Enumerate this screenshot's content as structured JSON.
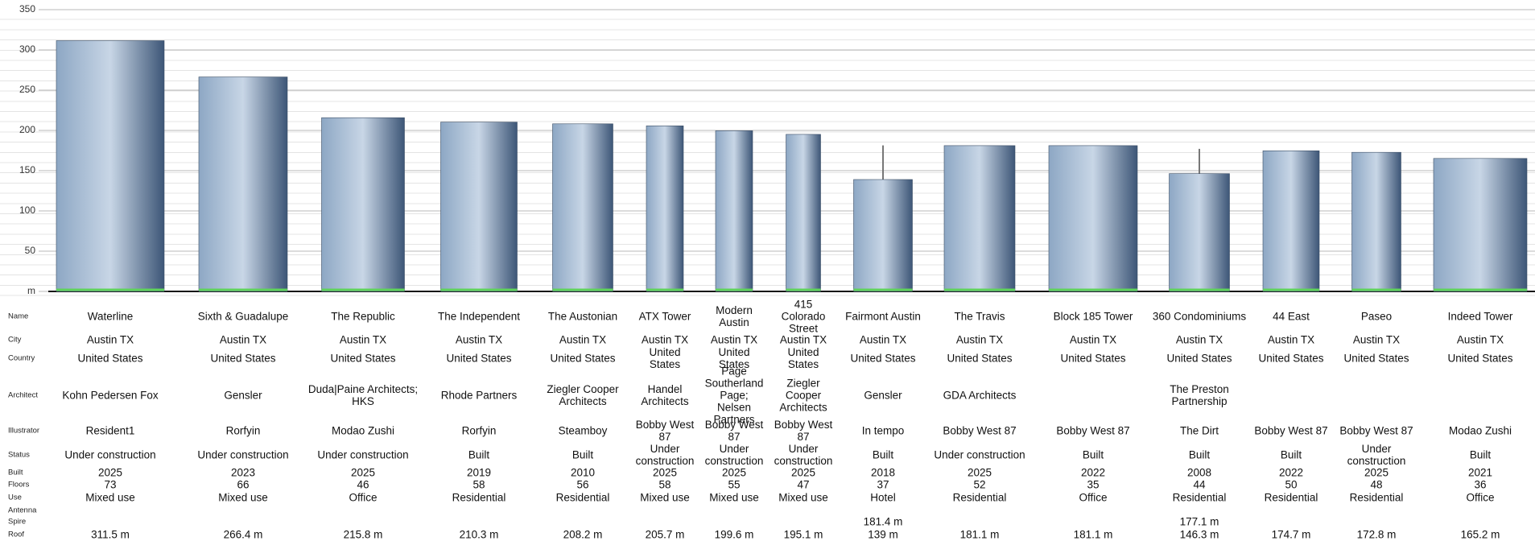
{
  "chart_data": {
    "type": "bar",
    "categories": [
      "Waterline",
      "Sixth & Guadalupe",
      "The Republic",
      "The Independent",
      "The Austonian",
      "ATX Tower",
      "Modern Austin",
      "415 Colorado Street",
      "Fairmont Austin",
      "The Travis",
      "Block 185 Tower",
      "360 Condominiums",
      "44 East",
      "Paseo",
      "Indeed Tower"
    ],
    "series": [
      {
        "name": "Antenna",
        "values": [
          null,
          null,
          null,
          null,
          null,
          null,
          null,
          null,
          null,
          null,
          null,
          null,
          null,
          null,
          null
        ]
      },
      {
        "name": "Spire",
        "color": "#777777",
        "values": [
          null,
          null,
          null,
          null,
          null,
          null,
          null,
          null,
          181.4,
          null,
          null,
          177.1,
          null,
          null,
          null
        ],
        "value_labels": [
          null,
          null,
          null,
          null,
          null,
          null,
          null,
          null,
          "181.4 m",
          null,
          null,
          "177.1 m",
          null,
          null,
          null
        ]
      },
      {
        "name": "Roof",
        "color": "#6f8fb3",
        "values": [
          311.5,
          266.4,
          215.8,
          210.3,
          208.2,
          205.7,
          199.6,
          195.1,
          139,
          181.1,
          181.1,
          146.3,
          174.7,
          172.8,
          165.2
        ],
        "value_labels": [
          "311.5 m",
          "266.4 m",
          "215.8 m",
          "210.3 m",
          "208.2 m",
          "205.7 m",
          "199.6 m",
          "195.1 m",
          "139 m",
          "181.1 m",
          "181.1 m",
          "146.3 m",
          "174.7 m",
          "172.8 m",
          "165.2 m"
        ]
      }
    ],
    "ylim": [
      0,
      350
    ],
    "yticks": [
      {
        "value": 0,
        "label": "m"
      },
      50,
      100,
      150,
      200,
      250,
      300,
      350
    ],
    "grid": true
  },
  "table": {
    "row_labels": [
      "Name",
      "City",
      "Country",
      "Architect",
      "Illustrator",
      "Status",
      "Built",
      "Floors",
      "Use"
    ],
    "city": [
      "Austin TX",
      "Austin TX",
      "Austin TX",
      "Austin TX",
      "Austin TX",
      "Austin TX",
      "Austin TX",
      "Austin TX",
      "Austin TX",
      "Austin TX",
      "Austin TX",
      "Austin TX",
      "Austin TX",
      "Austin TX",
      "Austin TX"
    ],
    "country": [
      "United States",
      "United States",
      "United States",
      "United States",
      "United States",
      "United States",
      "United States",
      "United States",
      "United States",
      "United States",
      "United States",
      "United States",
      "United States",
      "United States",
      "United States"
    ],
    "architect": [
      "Kohn Pedersen Fox",
      "Gensler",
      "Duda|Paine Architects; HKS",
      "Rhode Partners",
      "Ziegler Cooper Architects",
      "Handel Architects",
      "Page Southerland Page; Nelsen Partners",
      "Ziegler Cooper Architects",
      "Gensler",
      "GDA Architects",
      null,
      "The Preston Partnership",
      null,
      null,
      null
    ],
    "illustrator": [
      "Resident1",
      "Rorfyin",
      "Modao Zushi",
      "Rorfyin",
      "Steamboy",
      "Bobby West 87",
      "Bobby West 87",
      "Bobby West 87",
      "In tempo",
      "Bobby West 87",
      "Bobby West 87",
      "The Dirt",
      "Bobby West 87",
      "Bobby West 87",
      "Modao Zushi"
    ],
    "status": [
      "Under construction",
      "Under construction",
      "Under construction",
      "Built",
      "Built",
      "Under construction",
      "Under construction",
      "Under construction",
      "Built",
      "Under construction",
      "Built",
      "Built",
      "Built",
      "Under construction",
      "Built"
    ],
    "built": [
      2025,
      2023,
      2025,
      2019,
      2010,
      2025,
      2025,
      2025,
      2018,
      2025,
      2022,
      2008,
      2022,
      2025,
      2021
    ],
    "floors": [
      73,
      66,
      46,
      58,
      56,
      58,
      55,
      47,
      37,
      52,
      35,
      44,
      50,
      48,
      36
    ],
    "use": [
      "Mixed use",
      "Mixed use",
      "Office",
      "Residential",
      "Residential",
      "Mixed use",
      "Mixed use",
      "Mixed use",
      "Hotel",
      "Residential",
      "Office",
      "Residential",
      "Residential",
      "Residential",
      "Office"
    ]
  }
}
